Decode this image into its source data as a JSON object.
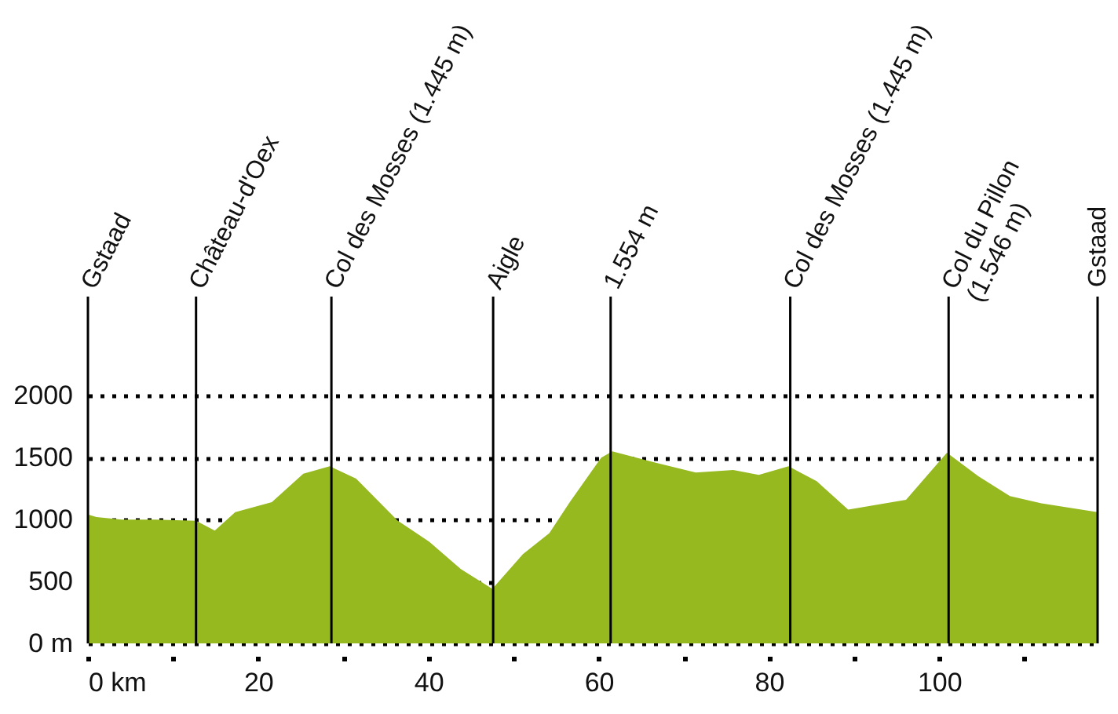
{
  "chart_data": {
    "type": "area",
    "x": [
      0,
      1,
      4,
      8,
      12.7,
      14.9,
      17.3,
      21.6,
      25.3,
      28.4,
      31.5,
      36.4,
      40.1,
      43.8,
      47.5,
      51.1,
      54.2,
      56.6,
      60.3,
      61.6,
      66.6,
      71.4,
      75.8,
      78.8,
      82.3,
      85.6,
      89.3,
      96.1,
      100.9,
      104.6,
      108.3,
      112,
      118.6
    ],
    "values": [
      1040,
      1020,
      1000,
      1000,
      990,
      910,
      1060,
      1140,
      1370,
      1430,
      1330,
      990,
      820,
      600,
      440,
      720,
      890,
      1140,
      1500,
      1550,
      1460,
      1380,
      1400,
      1360,
      1430,
      1310,
      1080,
      1160,
      1540,
      1350,
      1190,
      1130,
      1060
    ],
    "color": "#95b91e",
    "xlim": [
      0,
      118.6
    ],
    "xticks": [
      {
        "value": 0,
        "label": "0 km"
      },
      {
        "value": 10,
        "label": null
      },
      20,
      {
        "value": 30,
        "label": null
      },
      40,
      {
        "value": 50,
        "label": null
      },
      60,
      {
        "value": 70,
        "label": null
      },
      80,
      {
        "value": 90,
        "label": null
      },
      100,
      {
        "value": 110,
        "label": null
      }
    ],
    "ylim": [
      0,
      2800
    ],
    "yticks": [
      {
        "value": 0,
        "label": "0 m"
      },
      500,
      1000,
      1500,
      2000
    ],
    "grid": "y",
    "ref_lines": [
      {
        "axis": "x",
        "value": 0,
        "label": "Gstaad"
      },
      {
        "axis": "x",
        "value": 12.7,
        "label": "Château-d'Oex"
      },
      {
        "axis": "x",
        "value": 28.6,
        "label": "Col des Mosses (1.445 m)"
      },
      {
        "axis": "x",
        "value": 47.6,
        "label": "Aigle"
      },
      {
        "axis": "x",
        "value": 61.4,
        "label": "1.554 m"
      },
      {
        "axis": "x",
        "value": 82.5,
        "label": "Col des Mosses (1.445 m)"
      },
      {
        "axis": "x",
        "value": 101.1,
        "label": "Col du Pillon\n(1.546 m)"
      },
      {
        "axis": "x",
        "value": 118.6,
        "label": "Gstaad"
      }
    ]
  }
}
